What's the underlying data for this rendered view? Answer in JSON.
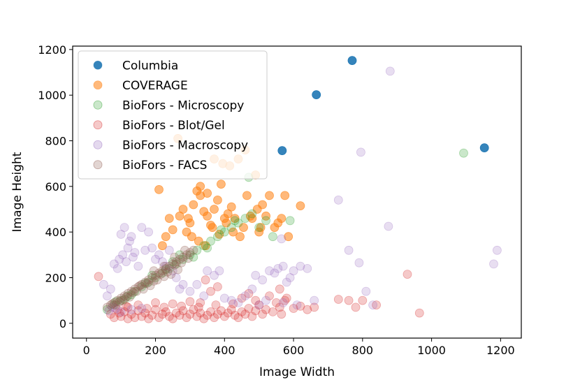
{
  "chart_data": {
    "type": "scatter",
    "title": "",
    "xlabel": "Image Width",
    "ylabel": "Image Height",
    "xlim": [
      -40,
      1260
    ],
    "ylim": [
      -65,
      1215
    ],
    "xticks": [
      0,
      200,
      400,
      600,
      800,
      1000,
      1200
    ],
    "yticks": [
      0,
      200,
      400,
      600,
      800,
      1000,
      1200
    ],
    "xtick_labels": [
      "0",
      "200",
      "400",
      "600",
      "800",
      "1000",
      "1200"
    ],
    "ytick_labels": [
      "0",
      "200",
      "400",
      "600",
      "800",
      "1000",
      "1200"
    ],
    "grid": false,
    "legend_position": "top-left",
    "series": [
      {
        "name": "Columbia",
        "color": "#1f77b4",
        "opacity": 0.9,
        "points": [
          [
            567,
            757
          ],
          [
            666,
            1002
          ],
          [
            770,
            1152
          ],
          [
            1153,
            769
          ]
        ]
      },
      {
        "name": "COVERAGE",
        "color": "#ff7f0e",
        "opacity": 0.55,
        "points": [
          [
            210,
            586
          ],
          [
            265,
            810
          ],
          [
            280,
            500
          ],
          [
            295,
            460
          ],
          [
            300,
            440
          ],
          [
            310,
            520
          ],
          [
            320,
            580
          ],
          [
            330,
            560
          ],
          [
            340,
            490
          ],
          [
            350,
            470
          ],
          [
            360,
            430
          ],
          [
            370,
            500
          ],
          [
            380,
            540
          ],
          [
            390,
            610
          ],
          [
            395,
            700
          ],
          [
            400,
            460
          ],
          [
            410,
            480
          ],
          [
            420,
            510
          ],
          [
            430,
            460
          ],
          [
            440,
            720
          ],
          [
            460,
            760
          ],
          [
            480,
            460
          ],
          [
            490,
            650
          ],
          [
            495,
            500
          ],
          [
            505,
            420
          ],
          [
            510,
            520
          ],
          [
            520,
            470
          ],
          [
            530,
            560
          ],
          [
            545,
            420
          ],
          [
            555,
            440
          ],
          [
            565,
            460
          ],
          [
            575,
            560
          ],
          [
            585,
            380
          ],
          [
            620,
            515
          ],
          [
            250,
            410
          ],
          [
            270,
            470
          ],
          [
            290,
            400
          ],
          [
            305,
            380
          ],
          [
            325,
            360
          ],
          [
            345,
            340
          ],
          [
            365,
            420
          ],
          [
            385,
            390
          ],
          [
            405,
            440
          ],
          [
            425,
            400
          ],
          [
            445,
            380
          ],
          [
            465,
            560
          ],
          [
            475,
            470
          ],
          [
            500,
            400
          ],
          [
            455,
            420
          ],
          [
            240,
            460
          ],
          [
            230,
            380
          ],
          [
            220,
            340
          ],
          [
            350,
            570
          ],
          [
            330,
            600
          ],
          [
            370,
            720
          ],
          [
            415,
            690
          ]
        ]
      },
      {
        "name": "BioFors - Microscopy",
        "color": "#2ca02c",
        "opacity": 0.25,
        "points": [
          [
            60,
            60
          ],
          [
            80,
            80
          ],
          [
            100,
            100
          ],
          [
            120,
            120
          ],
          [
            140,
            140
          ],
          [
            160,
            160
          ],
          [
            180,
            180
          ],
          [
            200,
            200
          ],
          [
            220,
            220
          ],
          [
            240,
            240
          ],
          [
            260,
            260
          ],
          [
            280,
            280
          ],
          [
            300,
            300
          ],
          [
            320,
            320
          ],
          [
            340,
            340
          ],
          [
            360,
            360
          ],
          [
            380,
            380
          ],
          [
            400,
            400
          ],
          [
            420,
            420
          ],
          [
            440,
            440
          ],
          [
            460,
            460
          ],
          [
            480,
            480
          ],
          [
            500,
            420
          ],
          [
            520,
            450
          ],
          [
            470,
            640
          ],
          [
            540,
            380
          ],
          [
            590,
            450
          ],
          [
            1093,
            746
          ],
          [
            85,
            95
          ],
          [
            130,
            125
          ],
          [
            190,
            210
          ],
          [
            250,
            270
          ],
          [
            310,
            290
          ],
          [
            350,
            330
          ],
          [
            390,
            410
          ],
          [
            430,
            450
          ],
          [
            270,
            300
          ],
          [
            230,
            235
          ],
          [
            170,
            175
          ],
          [
            110,
            105
          ]
        ]
      },
      {
        "name": "BioFors - Blot/Gel",
        "color": "#d62728",
        "opacity": 0.25,
        "points": [
          [
            35,
            205
          ],
          [
            70,
            40
          ],
          [
            80,
            25
          ],
          [
            90,
            60
          ],
          [
            100,
            30
          ],
          [
            110,
            50
          ],
          [
            120,
            20
          ],
          [
            130,
            40
          ],
          [
            140,
            25
          ],
          [
            150,
            55
          ],
          [
            160,
            30
          ],
          [
            170,
            45
          ],
          [
            180,
            20
          ],
          [
            190,
            35
          ],
          [
            200,
            60
          ],
          [
            210,
            25
          ],
          [
            220,
            40
          ],
          [
            230,
            50
          ],
          [
            240,
            30
          ],
          [
            250,
            20
          ],
          [
            260,
            45
          ],
          [
            270,
            35
          ],
          [
            280,
            55
          ],
          [
            290,
            25
          ],
          [
            300,
            40
          ],
          [
            310,
            60
          ],
          [
            320,
            30
          ],
          [
            330,
            45
          ],
          [
            340,
            20
          ],
          [
            350,
            35
          ],
          [
            360,
            50
          ],
          [
            370,
            25
          ],
          [
            380,
            40
          ],
          [
            390,
            55
          ],
          [
            400,
            30
          ],
          [
            410,
            45
          ],
          [
            420,
            60
          ],
          [
            430,
            35
          ],
          [
            440,
            25
          ],
          [
            450,
            50
          ],
          [
            460,
            40
          ],
          [
            470,
            65
          ],
          [
            480,
            30
          ],
          [
            490,
            55
          ],
          [
            500,
            80
          ],
          [
            510,
            40
          ],
          [
            520,
            60
          ],
          [
            540,
            50
          ],
          [
            550,
            90
          ],
          [
            560,
            70
          ],
          [
            565,
            40
          ],
          [
            580,
            110
          ],
          [
            600,
            65
          ],
          [
            620,
            75
          ],
          [
            640,
            60
          ],
          [
            660,
            70
          ],
          [
            730,
            105
          ],
          [
            760,
            100
          ],
          [
            780,
            70
          ],
          [
            800,
            100
          ],
          [
            840,
            80
          ],
          [
            930,
            215
          ],
          [
            965,
            45
          ],
          [
            345,
            190
          ],
          [
            360,
            140
          ],
          [
            380,
            160
          ],
          [
            450,
            110
          ],
          [
            470,
            130
          ],
          [
            490,
            100
          ],
          [
            530,
            120
          ],
          [
            560,
            150
          ],
          [
            575,
            100
          ],
          [
            330,
            90
          ],
          [
            300,
            95
          ],
          [
            250,
            85
          ],
          [
            200,
            90
          ],
          [
            150,
            80
          ],
          [
            120,
            70
          ],
          [
            95,
            45
          ],
          [
            115,
            75
          ],
          [
            175,
            65
          ],
          [
            225,
            70
          ],
          [
            275,
            75
          ],
          [
            325,
            70
          ],
          [
            375,
            80
          ],
          [
            425,
            85
          ]
        ]
      },
      {
        "name": "BioFors - Macroscopy",
        "color": "#9467bd",
        "opacity": 0.22,
        "points": [
          [
            50,
            170
          ],
          [
            60,
            120
          ],
          [
            70,
            150
          ],
          [
            80,
            260
          ],
          [
            90,
            240
          ],
          [
            95,
            280
          ],
          [
            100,
            390
          ],
          [
            105,
            300
          ],
          [
            110,
            420
          ],
          [
            115,
            270
          ],
          [
            120,
            330
          ],
          [
            125,
            360
          ],
          [
            130,
            380
          ],
          [
            135,
            290
          ],
          [
            140,
            310
          ],
          [
            150,
            250
          ],
          [
            160,
            420
          ],
          [
            170,
            320
          ],
          [
            180,
            400
          ],
          [
            190,
            330
          ],
          [
            200,
            280
          ],
          [
            210,
            300
          ],
          [
            220,
            270
          ],
          [
            230,
            250
          ],
          [
            240,
            320
          ],
          [
            250,
            230
          ],
          [
            260,
            200
          ],
          [
            270,
            150
          ],
          [
            280,
            170
          ],
          [
            300,
            140
          ],
          [
            320,
            170
          ],
          [
            340,
            120
          ],
          [
            350,
            230
          ],
          [
            370,
            210
          ],
          [
            385,
            230
          ],
          [
            400,
            110
          ],
          [
            420,
            100
          ],
          [
            440,
            90
          ],
          [
            460,
            120
          ],
          [
            480,
            150
          ],
          [
            490,
            210
          ],
          [
            510,
            190
          ],
          [
            530,
            230
          ],
          [
            545,
            220
          ],
          [
            555,
            240
          ],
          [
            565,
            370
          ],
          [
            570,
            250
          ],
          [
            580,
            180
          ],
          [
            590,
            200
          ],
          [
            600,
            230
          ],
          [
            620,
            250
          ],
          [
            640,
            240
          ],
          [
            660,
            100
          ],
          [
            730,
            540
          ],
          [
            760,
            320
          ],
          [
            790,
            265
          ],
          [
            795,
            750
          ],
          [
            810,
            140
          ],
          [
            830,
            80
          ],
          [
            875,
            425
          ],
          [
            880,
            1105
          ],
          [
            1180,
            260
          ],
          [
            1190,
            320
          ],
          [
            570,
            90
          ],
          [
            610,
            80
          ],
          [
            500,
            80
          ],
          [
            520,
            100
          ],
          [
            65,
            55
          ],
          [
            75,
            70
          ],
          [
            85,
            65
          ],
          [
            100,
            50
          ],
          [
            130,
            60
          ],
          [
            160,
            65
          ]
        ]
      },
      {
        "name": "BioFors - FACS",
        "color": "#8c564b",
        "opacity": 0.25,
        "points": [
          [
            60,
            70
          ],
          [
            70,
            80
          ],
          [
            80,
            90
          ],
          [
            90,
            100
          ],
          [
            100,
            110
          ],
          [
            110,
            120
          ],
          [
            120,
            130
          ],
          [
            130,
            140
          ],
          [
            140,
            150
          ],
          [
            150,
            160
          ],
          [
            160,
            170
          ],
          [
            170,
            180
          ],
          [
            180,
            190
          ],
          [
            190,
            200
          ],
          [
            200,
            210
          ],
          [
            210,
            220
          ],
          [
            220,
            230
          ],
          [
            230,
            240
          ],
          [
            240,
            250
          ],
          [
            250,
            260
          ],
          [
            260,
            270
          ],
          [
            270,
            280
          ],
          [
            280,
            290
          ],
          [
            290,
            300
          ],
          [
            300,
            310
          ],
          [
            310,
            320
          ],
          [
            75,
            85
          ],
          [
            95,
            95
          ],
          [
            115,
            115
          ],
          [
            135,
            135
          ],
          [
            155,
            165
          ],
          [
            175,
            175
          ],
          [
            195,
            185
          ],
          [
            215,
            215
          ],
          [
            235,
            225
          ],
          [
            255,
            255
          ],
          [
            275,
            265
          ],
          [
            295,
            285
          ],
          [
            145,
            140
          ],
          [
            165,
            150
          ],
          [
            185,
            165
          ],
          [
            205,
            190
          ],
          [
            225,
            205
          ],
          [
            245,
            215
          ],
          [
            265,
            235
          ],
          [
            125,
            115
          ],
          [
            105,
            100
          ],
          [
            85,
            80
          ],
          [
            195,
            230
          ],
          [
            225,
            250
          ],
          [
            255,
            290
          ],
          [
            285,
            320
          ]
        ]
      }
    ]
  }
}
